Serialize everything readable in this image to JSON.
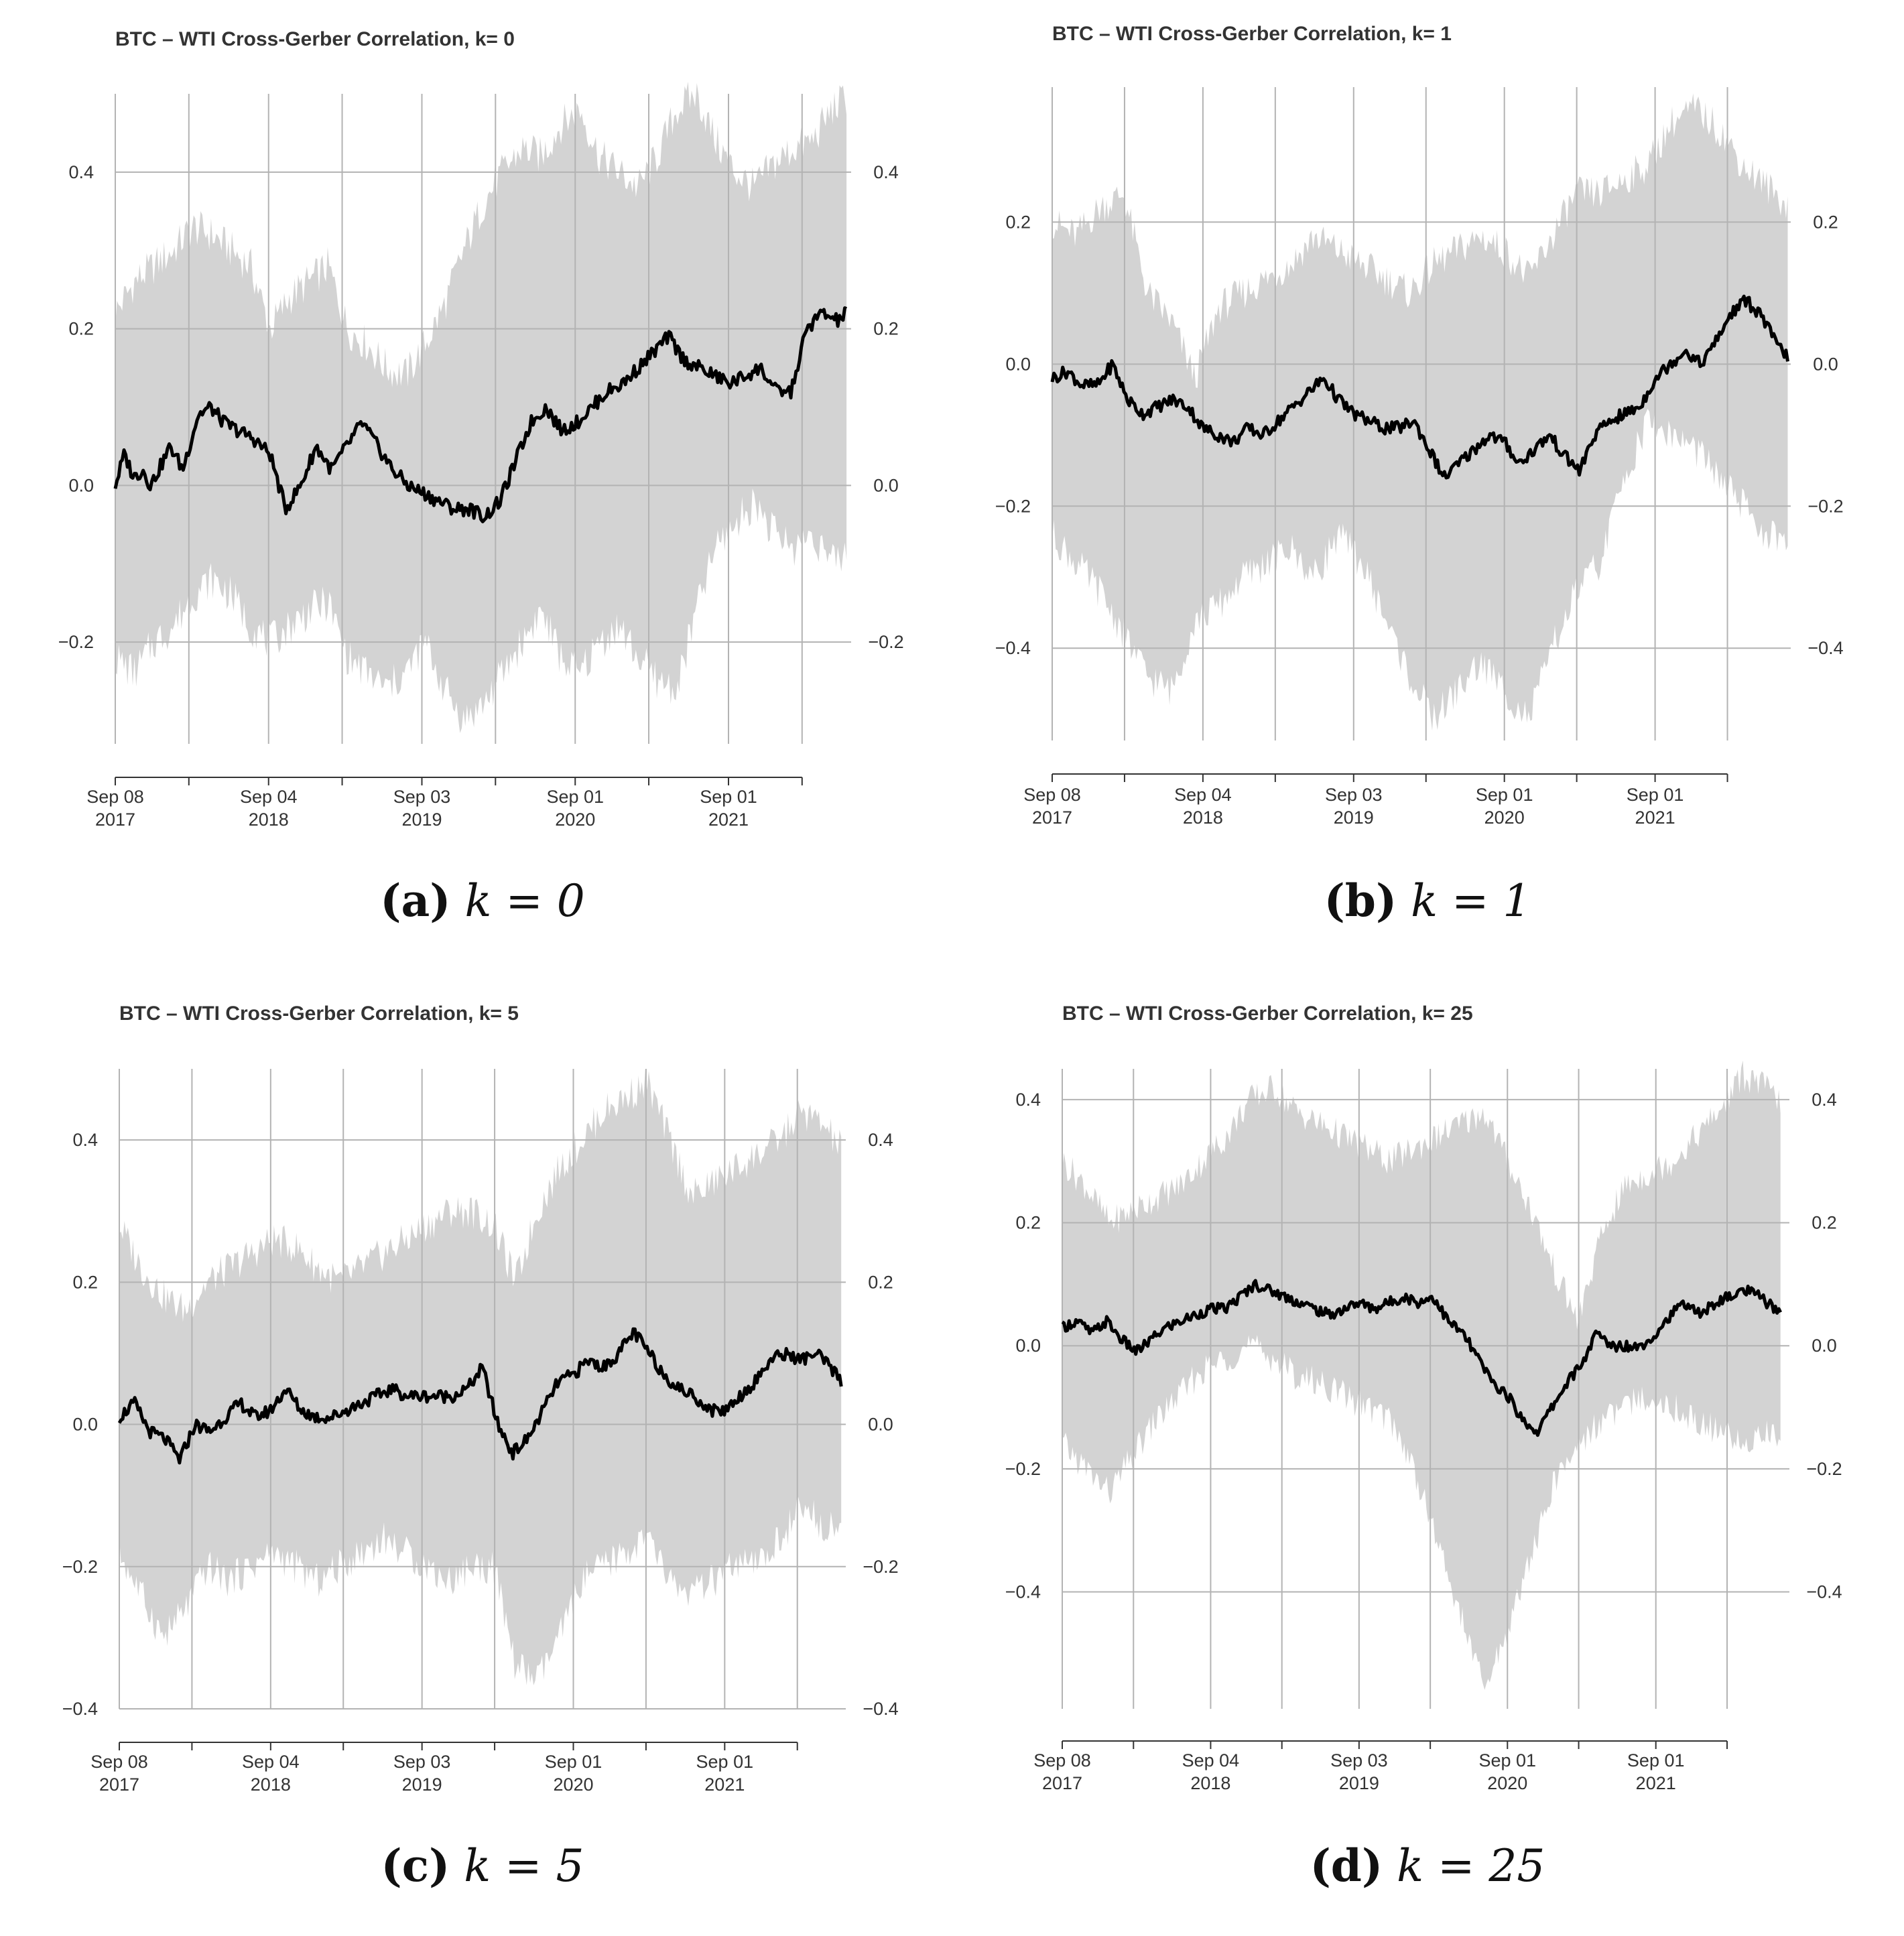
{
  "figure": {
    "panels": [
      {
        "caption": {
          "letter": "(a)",
          "k_label": "k = 0"
        }
      },
      {
        "caption": {
          "letter": "(b)",
          "k_label": "k = 1"
        }
      },
      {
        "caption": {
          "letter": "(c)",
          "k_label": "k = 5"
        }
      },
      {
        "caption": {
          "letter": "(d)",
          "k_label": "k = 25"
        }
      }
    ]
  },
  "colors": {
    "band": "#d3d3d3",
    "line": "#000000",
    "grid": "#b3b3b3",
    "axis": "#333333",
    "text": "#333333"
  },
  "chart_data": [
    {
      "type": "line",
      "title": "BTC – WTI Cross-Gerber Correlation, k= 0",
      "series": [
        {
          "name": "Cross-Gerber correlation",
          "x": [
            0,
            0.06,
            0.12,
            0.18,
            0.23,
            0.31,
            0.36,
            0.44,
            0.54,
            0.62,
            0.71,
            0.8,
            0.9,
            1.01,
            1.11,
            1.21,
            1.31,
            1.41,
            1.51,
            1.61,
            1.71,
            1.81,
            1.91,
            2.01,
            2.11,
            2.21,
            2.31,
            2.41,
            2.51,
            2.61,
            2.71,
            2.81,
            2.91,
            3.01,
            3.11,
            3.21,
            3.31,
            3.41,
            3.51,
            3.61,
            3.71,
            3.81,
            3.91,
            4.01,
            4.11,
            4.21,
            4.31,
            4.41,
            4.51,
            4.61,
            4.71,
            4.77
          ],
          "y": [
            0.0,
            0.04,
            0.01,
            0.02,
            0.0,
            0.03,
            0.05,
            0.02,
            0.09,
            0.1,
            0.08,
            0.07,
            0.06,
            0.04,
            -0.03,
            0.0,
            0.05,
            0.02,
            0.05,
            0.08,
            0.05,
            0.02,
            0.0,
            -0.01,
            -0.02,
            -0.03,
            -0.03,
            -0.04,
            -0.02,
            0.03,
            0.08,
            0.1,
            0.07,
            0.08,
            0.1,
            0.12,
            0.13,
            0.15,
            0.17,
            0.19,
            0.16,
            0.15,
            0.14,
            0.13,
            0.14,
            0.15,
            0.12,
            0.12,
            0.2,
            0.22,
            0.21,
            0.22
          ],
          "band_upper": [
            0.22,
            0.26,
            0.28,
            0.3,
            0.33,
            0.32,
            0.3,
            0.28,
            0.2,
            0.24,
            0.26,
            0.28,
            0.2,
            0.18,
            0.15,
            0.14,
            0.18,
            0.23,
            0.3,
            0.36,
            0.4,
            0.43,
            0.42,
            0.46,
            0.48,
            0.42,
            0.4,
            0.38,
            0.42,
            0.48,
            0.5,
            0.44,
            0.4,
            0.38,
            0.41,
            0.43,
            0.44,
            0.48,
            0.5
          ],
          "band_lower": [
            -0.22,
            -0.24,
            -0.2,
            -0.18,
            -0.14,
            -0.12,
            -0.14,
            -0.18,
            -0.2,
            -0.18,
            -0.16,
            -0.15,
            -0.22,
            -0.24,
            -0.26,
            -0.24,
            -0.2,
            -0.26,
            -0.3,
            -0.28,
            -0.24,
            -0.2,
            -0.16,
            -0.22,
            -0.24,
            -0.2,
            -0.18,
            -0.22,
            -0.25,
            -0.26,
            -0.16,
            -0.08,
            -0.05,
            -0.02,
            -0.06,
            -0.08,
            -0.06,
            -0.1,
            -0.08
          ]
        }
      ],
      "xlim": [
        0,
        4.8
      ],
      "ylim": [
        -0.33,
        0.5
      ],
      "yticks": [
        -0.2,
        0.0,
        0.2,
        0.4
      ],
      "yticklabels": [
        "−0.2",
        "0.0",
        "0.2",
        "0.4"
      ],
      "xticks": [
        0,
        1,
        2,
        3,
        4
      ],
      "xticklabels": [
        [
          "Sep 08",
          "2017"
        ],
        [
          "Sep 04",
          "2018"
        ],
        [
          "Sep 03",
          "2019"
        ],
        [
          "Sep 01",
          "2020"
        ],
        [
          "Sep 01",
          "2021"
        ]
      ],
      "x_minor": [
        0.48,
        1.48,
        2.48,
        3.48,
        4.48
      ],
      "grid": true
    },
    {
      "type": "line",
      "title": "BTC – WTI Cross-Gerber Correlation, k= 1",
      "series": [
        {
          "name": "Cross-Gerber correlation",
          "x": [
            0,
            0.1,
            0.2,
            0.3,
            0.4,
            0.5,
            0.6,
            0.7,
            0.8,
            0.9,
            1.0,
            1.1,
            1.2,
            1.3,
            1.4,
            1.5,
            1.6,
            1.7,
            1.8,
            1.9,
            2.0,
            2.1,
            2.2,
            2.3,
            2.4,
            2.5,
            2.6,
            2.7,
            2.8,
            2.9,
            3.0,
            3.1,
            3.2,
            3.3,
            3.4,
            3.5,
            3.6,
            3.7,
            3.8,
            3.9,
            4.0,
            4.1,
            4.2,
            4.3,
            4.4,
            4.5,
            4.6,
            4.7,
            4.8,
            4.88
          ],
          "y": [
            -0.02,
            -0.01,
            -0.03,
            -0.03,
            0.0,
            -0.05,
            -0.07,
            -0.06,
            -0.05,
            -0.06,
            -0.09,
            -0.1,
            -0.11,
            -0.09,
            -0.1,
            -0.08,
            -0.06,
            -0.04,
            -0.02,
            -0.05,
            -0.07,
            -0.08,
            -0.09,
            -0.09,
            -0.08,
            -0.12,
            -0.16,
            -0.14,
            -0.12,
            -0.1,
            -0.11,
            -0.14,
            -0.12,
            -0.1,
            -0.13,
            -0.15,
            -0.1,
            -0.08,
            -0.07,
            -0.06,
            -0.02,
            0.0,
            0.02,
            0.0,
            0.03,
            0.07,
            0.09,
            0.07,
            0.03,
            0.01
          ],
          "band_upper": [
            0.2,
            0.18,
            0.22,
            0.24,
            0.1,
            0.06,
            -0.02,
            0.08,
            0.1,
            0.12,
            0.14,
            0.18,
            0.16,
            0.14,
            0.12,
            0.1,
            0.14,
            0.16,
            0.18,
            0.16,
            0.12,
            0.18,
            0.24,
            0.24,
            0.26,
            0.28,
            0.34,
            0.36,
            0.33,
            0.28,
            0.25,
            0.22
          ],
          "band_lower": [
            -0.24,
            -0.28,
            -0.32,
            -0.38,
            -0.44,
            -0.46,
            -0.36,
            -0.34,
            -0.3,
            -0.28,
            -0.26,
            -0.3,
            -0.24,
            -0.28,
            -0.36,
            -0.44,
            -0.5,
            -0.46,
            -0.42,
            -0.46,
            -0.5,
            -0.4,
            -0.32,
            -0.28,
            -0.16,
            -0.08,
            -0.1,
            -0.12,
            -0.16,
            -0.2,
            -0.24,
            -0.26
          ]
        }
      ],
      "xlim": [
        0,
        4.9
      ],
      "ylim": [
        -0.53,
        0.39
      ],
      "yticks": [
        -0.4,
        -0.2,
        0.0,
        0.2
      ],
      "yticklabels": [
        "−0.4",
        "−0.2",
        "0.0",
        "0.2"
      ],
      "xticks": [
        0,
        1,
        2,
        3,
        4
      ],
      "xticklabels": [
        [
          "Sep 08",
          "2017"
        ],
        [
          "Sep 04",
          "2018"
        ],
        [
          "Sep 03",
          "2019"
        ],
        [
          "Sep 01",
          "2020"
        ],
        [
          "Sep 01",
          "2021"
        ]
      ],
      "x_minor": [
        0.48,
        1.48,
        2.48,
        3.48,
        4.48
      ],
      "grid": true
    },
    {
      "type": "line",
      "title": "BTC – WTI Cross-Gerber Correlation, k= 5",
      "series": [
        {
          "name": "Cross-Gerber correlation",
          "x": [
            0,
            0.1,
            0.2,
            0.3,
            0.4,
            0.5,
            0.6,
            0.7,
            0.8,
            0.9,
            1.0,
            1.1,
            1.2,
            1.3,
            1.4,
            1.5,
            1.6,
            1.7,
            1.8,
            1.9,
            2.0,
            2.1,
            2.2,
            2.3,
            2.4,
            2.5,
            2.6,
            2.7,
            2.8,
            2.9,
            3.0,
            3.1,
            3.2,
            3.3,
            3.4,
            3.5,
            3.6,
            3.7,
            3.8,
            3.9,
            4.0,
            4.1,
            4.2,
            4.3,
            4.4,
            4.5,
            4.6,
            4.7,
            4.77
          ],
          "y": [
            0.01,
            0.03,
            -0.01,
            -0.02,
            -0.05,
            0.0,
            -0.01,
            0.01,
            0.03,
            0.01,
            0.02,
            0.05,
            0.02,
            0.01,
            0.01,
            0.02,
            0.03,
            0.04,
            0.05,
            0.04,
            0.04,
            0.04,
            0.04,
            0.05,
            0.08,
            0.0,
            -0.04,
            -0.02,
            0.02,
            0.06,
            0.07,
            0.09,
            0.08,
            0.1,
            0.13,
            0.1,
            0.07,
            0.05,
            0.04,
            0.02,
            0.02,
            0.04,
            0.06,
            0.09,
            0.1,
            0.09,
            0.1,
            0.08,
            0.06
          ],
          "band_upper": [
            0.28,
            0.22,
            0.18,
            0.16,
            0.2,
            0.22,
            0.24,
            0.26,
            0.25,
            0.22,
            0.2,
            0.22,
            0.24,
            0.26,
            0.28,
            0.3,
            0.3,
            0.28,
            0.2,
            0.3,
            0.36,
            0.4,
            0.44,
            0.46,
            0.48,
            0.4,
            0.32,
            0.34,
            0.36,
            0.38,
            0.4,
            0.44,
            0.42,
            0.38
          ],
          "band_lower": [
            -0.18,
            -0.24,
            -0.3,
            -0.26,
            -0.2,
            -0.22,
            -0.2,
            -0.18,
            -0.2,
            -0.22,
            -0.2,
            -0.18,
            -0.16,
            -0.18,
            -0.2,
            -0.22,
            -0.2,
            -0.2,
            -0.34,
            -0.36,
            -0.3,
            -0.22,
            -0.2,
            -0.18,
            -0.16,
            -0.22,
            -0.24,
            -0.22,
            -0.2,
            -0.2,
            -0.16,
            -0.12,
            -0.14,
            -0.14
          ]
        }
      ],
      "xlim": [
        0,
        4.8
      ],
      "ylim": [
        -0.4,
        0.5
      ],
      "yticks": [
        -0.4,
        -0.2,
        0.0,
        0.2,
        0.4
      ],
      "yticklabels": [
        "−0.4",
        "−0.2",
        "0.0",
        "0.2",
        "0.4"
      ],
      "xticks": [
        0,
        1,
        2,
        3,
        4
      ],
      "xticklabels": [
        [
          "Sep 08",
          "2017"
        ],
        [
          "Sep 04",
          "2018"
        ],
        [
          "Sep 03",
          "2019"
        ],
        [
          "Sep 01",
          "2020"
        ],
        [
          "Sep 01",
          "2021"
        ]
      ],
      "x_minor": [
        0.48,
        1.48,
        2.48,
        3.48,
        4.48
      ],
      "grid": true
    },
    {
      "type": "line",
      "title": "BTC – WTI Cross-Gerber Correlation, k= 25",
      "series": [
        {
          "name": "Cross-Gerber correlation",
          "x": [
            0,
            0.1,
            0.2,
            0.3,
            0.4,
            0.5,
            0.6,
            0.7,
            0.8,
            0.9,
            1.0,
            1.1,
            1.2,
            1.3,
            1.4,
            1.5,
            1.6,
            1.7,
            1.8,
            1.9,
            2.0,
            2.1,
            2.2,
            2.3,
            2.4,
            2.5,
            2.6,
            2.7,
            2.8,
            2.9,
            3.0,
            3.1,
            3.2,
            3.3,
            3.4,
            3.5,
            3.6,
            3.7,
            3.8,
            3.9,
            4.0,
            4.1,
            4.2,
            4.3,
            4.4,
            4.5,
            4.6,
            4.7,
            4.8,
            4.84
          ],
          "y": [
            0.03,
            0.04,
            0.02,
            0.04,
            0.01,
            -0.01,
            0.01,
            0.03,
            0.04,
            0.05,
            0.06,
            0.06,
            0.08,
            0.1,
            0.09,
            0.08,
            0.07,
            0.06,
            0.05,
            0.06,
            0.07,
            0.06,
            0.07,
            0.08,
            0.07,
            0.08,
            0.04,
            0.02,
            -0.02,
            -0.06,
            -0.08,
            -0.12,
            -0.14,
            -0.1,
            -0.06,
            -0.03,
            0.02,
            0.0,
            0.0,
            0.0,
            0.02,
            0.05,
            0.07,
            0.05,
            0.07,
            0.08,
            0.09,
            0.08,
            0.06,
            0.05
          ],
          "band_upper": [
            0.3,
            0.26,
            0.2,
            0.22,
            0.24,
            0.26,
            0.3,
            0.34,
            0.4,
            0.42,
            0.38,
            0.36,
            0.34,
            0.32,
            0.3,
            0.32,
            0.34,
            0.36,
            0.38,
            0.3,
            0.22,
            0.12,
            0.04,
            0.18,
            0.26,
            0.28,
            0.3,
            0.34,
            0.38,
            0.44,
            0.42,
            0.38
          ],
          "band_lower": [
            -0.16,
            -0.2,
            -0.24,
            -0.18,
            -0.12,
            -0.08,
            -0.04,
            -0.02,
            0.0,
            -0.02,
            -0.05,
            -0.06,
            -0.08,
            -0.1,
            -0.12,
            -0.2,
            -0.32,
            -0.44,
            -0.56,
            -0.46,
            -0.34,
            -0.22,
            -0.16,
            -0.12,
            -0.1,
            -0.08,
            -0.1,
            -0.12,
            -0.14,
            -0.16,
            -0.14,
            -0.16
          ]
        }
      ],
      "xlim": [
        0,
        4.9
      ],
      "ylim": [
        -0.59,
        0.45
      ],
      "yticks": [
        -0.4,
        -0.2,
        0.0,
        0.2,
        0.4
      ],
      "yticklabels": [
        "−0.4",
        "−0.2",
        "0.0",
        "0.2",
        "0.4"
      ],
      "xticks": [
        0,
        1,
        2,
        3,
        4
      ],
      "xticklabels": [
        [
          "Sep 08",
          "2017"
        ],
        [
          "Sep 04",
          "2018"
        ],
        [
          "Sep 03",
          "2019"
        ],
        [
          "Sep 01",
          "2020"
        ],
        [
          "Sep 01",
          "2021"
        ]
      ],
      "x_minor": [
        0.48,
        1.48,
        2.48,
        3.48,
        4.48
      ],
      "grid": true
    }
  ]
}
